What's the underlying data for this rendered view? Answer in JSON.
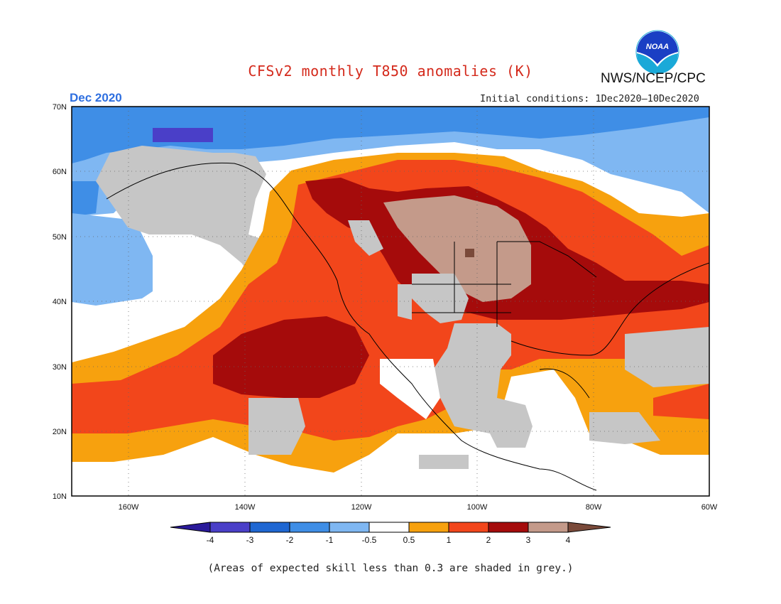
{
  "header": {
    "title": "CFSv2 monthly T850 anomalies (K)",
    "agency": "NWS/NCEP/CPC",
    "logo_text": "NOAA",
    "valid_month": "Dec 2020",
    "initial_conditions": "Initial conditions: 1Dec2020–10Dec2020"
  },
  "map": {
    "lat_range": [
      10,
      70
    ],
    "lon_range": [
      -170,
      -60
    ],
    "lat_ticks": [
      "10N",
      "20N",
      "30N",
      "40N",
      "50N",
      "60N",
      "70N"
    ],
    "lon_ticks": [
      "160W",
      "140W",
      "120W",
      "100W",
      "80W",
      "60W"
    ],
    "gridlines": true
  },
  "colorbar": {
    "labels": [
      "-4",
      "-3",
      "-2",
      "-1",
      "-0.5",
      "0.5",
      "1",
      "2",
      "3",
      "4"
    ],
    "colors": [
      "#2a1a9a",
      "#4a3fc8",
      "#1f67d2",
      "#3f8ee6",
      "#7fb7f2",
      "#ffffff",
      "#f7a10e",
      "#f2461b",
      "#a50b0b",
      "#c49a8a",
      "#7a4a3a"
    ]
  },
  "legend_colors": {
    "grey_low_skill": "#c6c6c6",
    "white_neutral": "#ffffff"
  },
  "footnote": "(Areas of expected skill less than 0.3 are shaded in grey.)"
}
